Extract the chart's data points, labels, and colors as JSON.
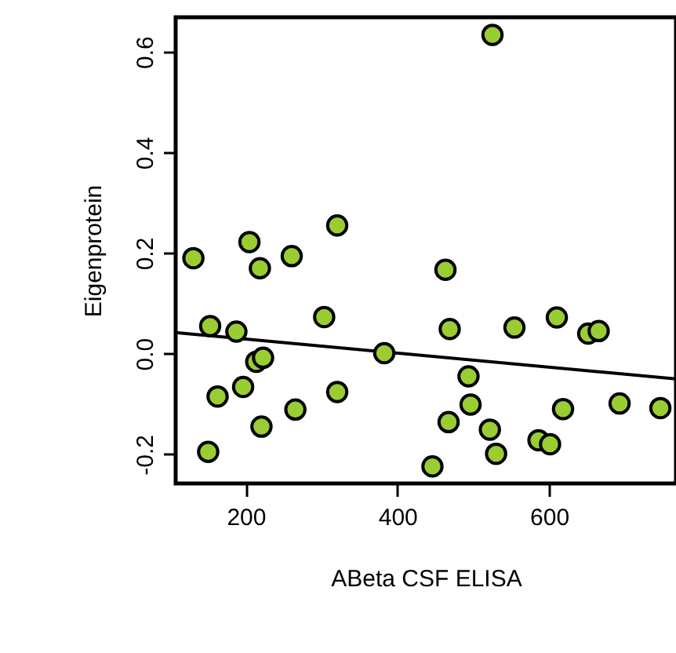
{
  "chart_data": {
    "type": "scatter",
    "xlabel": "ABeta CSF ELISA",
    "ylabel": "Eigenprotein",
    "xlim": [
      107.5,
      767.5
    ],
    "ylim": [
      -0.258,
      0.669
    ],
    "xticks": [
      200,
      400,
      600
    ],
    "yticks": [
      {
        "value": -0.2,
        "label": "-0.2"
      },
      {
        "value": 0,
        "label": "0.0"
      },
      {
        "value": 0.2,
        "label": "0.2"
      },
      {
        "value": 0.4,
        "label": "0.4"
      },
      {
        "value": 0.6,
        "label": "0.6"
      }
    ],
    "grid": false,
    "series": [
      {
        "marker": "circle",
        "color": "#9acd32",
        "x": [
          130.9,
          204.8,
          218.6,
          260.6,
          320.6,
          463.4,
          153,
          187.6,
          303.4,
          469,
          554.4,
          610.3,
          651.7,
          665.5,
          382.7,
          213.8,
          222.8,
          196.5,
          162.8,
          320.6,
          493.8,
          150.4,
          220.7,
          265.4,
          496.5,
          467.5,
          522,
          530.2,
          446.2,
          586.1,
          601.4,
          618.5,
          693.1,
          746.9,
          525.4
        ],
        "values": [
          0.19,
          0.222,
          0.17,
          0.194,
          0.255,
          0.167,
          0.055,
          0.044,
          0.073,
          0.049,
          0.052,
          0.072,
          0.04,
          0.045,
          0.001,
          -0.016,
          -0.008,
          -0.066,
          -0.085,
          -0.076,
          -0.045,
          -0.195,
          -0.145,
          -0.111,
          -0.101,
          -0.136,
          -0.151,
          -0.199,
          -0.224,
          -0.172,
          -0.18,
          -0.11,
          -0.099,
          -0.108,
          0.634
        ]
      },
      {
        "type": "line",
        "color": "#000000",
        "x": [
          107.5,
          767.5
        ],
        "values": [
          0.042,
          -0.05
        ]
      }
    ]
  }
}
